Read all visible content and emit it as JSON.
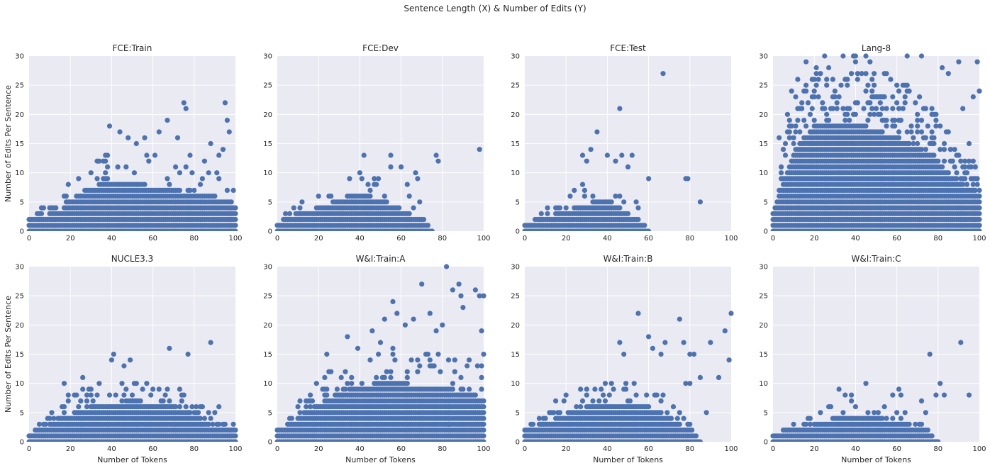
{
  "figure": {
    "title": "Sentence Length (X) & Number of Edits (Y)"
  },
  "style": {
    "background": "#eaeaf2",
    "grid": "#ffffff",
    "marker": "#4c72b0"
  },
  "chart_data": [
    {
      "type": "scatter",
      "title": "FCE:Train",
      "xlabel": "",
      "ylabel": "Number of Edits Per Sentence",
      "xlim": [
        0,
        100
      ],
      "ylim": [
        0,
        30
      ],
      "xticks": [
        "0",
        "20",
        "40",
        "60",
        "80",
        "100"
      ],
      "yticks": [
        "0",
        "5",
        "10",
        "15",
        "20",
        "25",
        "30"
      ],
      "grid": true,
      "profile": [
        [
          0,
          2
        ],
        [
          5,
          4
        ],
        [
          10,
          5
        ],
        [
          15,
          6
        ],
        [
          20,
          9
        ],
        [
          25,
          11
        ],
        [
          30,
          13
        ],
        [
          40,
          14
        ],
        [
          50,
          14
        ],
        [
          60,
          13
        ],
        [
          70,
          12
        ],
        [
          80,
          11
        ],
        [
          90,
          10
        ],
        [
          100,
          8
        ]
      ],
      "density": 210,
      "seed": 11,
      "outliers": [
        [
          39,
          18
        ],
        [
          44,
          17
        ],
        [
          48,
          16
        ],
        [
          52,
          15
        ],
        [
          56,
          16
        ],
        [
          63,
          17
        ],
        [
          67,
          19
        ],
        [
          72,
          16
        ],
        [
          75,
          22
        ],
        [
          76,
          21
        ],
        [
          78,
          13
        ],
        [
          85,
          12
        ],
        [
          88,
          15
        ],
        [
          92,
          13
        ],
        [
          94,
          14
        ],
        [
          95,
          22
        ],
        [
          96,
          19
        ],
        [
          97,
          17
        ],
        [
          99,
          7
        ]
      ]
    },
    {
      "type": "scatter",
      "title": "FCE:Dev",
      "xlabel": "",
      "ylabel": "",
      "xlim": [
        0,
        100
      ],
      "ylim": [
        0,
        30
      ],
      "xticks": [
        "0",
        "20",
        "40",
        "60",
        "80",
        "100"
      ],
      "yticks": [
        "0",
        "5",
        "10",
        "15",
        "20",
        "25",
        "30"
      ],
      "grid": true,
      "profile": [
        [
          0,
          1
        ],
        [
          5,
          3
        ],
        [
          10,
          5
        ],
        [
          15,
          6
        ],
        [
          20,
          7
        ],
        [
          25,
          8
        ],
        [
          30,
          9
        ],
        [
          38,
          11
        ],
        [
          45,
          10
        ],
        [
          55,
          8
        ],
        [
          62,
          6
        ],
        [
          70,
          3
        ],
        [
          75,
          0
        ]
      ],
      "density": 110,
      "seed": 23,
      "outliers": [
        [
          42,
          13
        ],
        [
          55,
          13
        ],
        [
          55,
          11
        ],
        [
          60,
          11
        ],
        [
          63,
          8
        ],
        [
          64,
          6
        ],
        [
          67,
          10
        ],
        [
          68,
          9
        ],
        [
          69,
          5
        ],
        [
          77,
          13
        ],
        [
          78,
          12
        ],
        [
          98,
          14
        ]
      ]
    },
    {
      "type": "scatter",
      "title": "FCE:Test",
      "xlabel": "",
      "ylabel": "",
      "xlim": [
        0,
        100
      ],
      "ylim": [
        0,
        30
      ],
      "xticks": [
        "0",
        "20",
        "40",
        "60",
        "80",
        "100"
      ],
      "yticks": [
        "0",
        "5",
        "10",
        "15",
        "20",
        "25",
        "30"
      ],
      "grid": true,
      "profile": [
        [
          0,
          1
        ],
        [
          5,
          2
        ],
        [
          10,
          4
        ],
        [
          15,
          5
        ],
        [
          20,
          6
        ],
        [
          25,
          7
        ],
        [
          30,
          8
        ],
        [
          38,
          9
        ],
        [
          45,
          7
        ],
        [
          50,
          5
        ],
        [
          55,
          2
        ],
        [
          60,
          0
        ]
      ],
      "density": 85,
      "seed": 37,
      "outliers": [
        [
          35,
          17
        ],
        [
          40,
          13
        ],
        [
          44,
          12
        ],
        [
          46,
          21
        ],
        [
          47,
          13
        ],
        [
          50,
          11
        ],
        [
          52,
          13
        ],
        [
          54,
          5
        ],
        [
          55,
          4
        ],
        [
          60,
          9
        ],
        [
          67,
          27
        ],
        [
          78,
          9
        ],
        [
          79,
          9
        ],
        [
          85,
          5
        ],
        [
          28,
          13
        ],
        [
          30,
          12
        ],
        [
          32,
          14
        ]
      ]
    },
    {
      "type": "scatter",
      "title": "Lang-8",
      "xlabel": "",
      "ylabel": "",
      "xlim": [
        0,
        100
      ],
      "ylim": [
        0,
        30
      ],
      "xticks": [
        "0",
        "20",
        "40",
        "60",
        "80",
        "100"
      ],
      "yticks": [
        "0",
        "5",
        "10",
        "15",
        "20",
        "25",
        "30"
      ],
      "grid": true,
      "profile": [
        [
          0,
          3
        ],
        [
          3,
          10
        ],
        [
          6,
          16
        ],
        [
          10,
          22
        ],
        [
          15,
          27
        ],
        [
          20,
          30
        ],
        [
          30,
          30
        ],
        [
          45,
          30
        ],
        [
          60,
          27
        ],
        [
          70,
          24
        ],
        [
          80,
          20
        ],
        [
          90,
          14
        ],
        [
          100,
          11
        ]
      ],
      "density": 900,
      "seed": 53,
      "outliers": [
        [
          3,
          16
        ],
        [
          7,
          20
        ],
        [
          9,
          24
        ],
        [
          12,
          26
        ],
        [
          16,
          29
        ],
        [
          25,
          30
        ],
        [
          40,
          30
        ],
        [
          65,
          30
        ],
        [
          72,
          30
        ],
        [
          82,
          28
        ],
        [
          85,
          27
        ],
        [
          90,
          29
        ],
        [
          92,
          21
        ],
        [
          95,
          15
        ],
        [
          97,
          23
        ],
        [
          98,
          11
        ],
        [
          99,
          29
        ],
        [
          100,
          24
        ],
        [
          100,
          1
        ],
        [
          100,
          0
        ],
        [
          96,
          0
        ],
        [
          93,
          2
        ]
      ]
    },
    {
      "type": "scatter",
      "title": "NUCLE3.3",
      "xlabel": "Number of Tokens",
      "ylabel": "Number of Edits Per Sentence",
      "xlim": [
        0,
        100
      ],
      "ylim": [
        0,
        30
      ],
      "xticks": [
        "0",
        "20",
        "40",
        "60",
        "80",
        "100"
      ],
      "yticks": [
        "0",
        "5",
        "10",
        "15",
        "20",
        "25",
        "30"
      ],
      "grid": true,
      "profile": [
        [
          0,
          1
        ],
        [
          5,
          3
        ],
        [
          10,
          5
        ],
        [
          15,
          7
        ],
        [
          20,
          8
        ],
        [
          30,
          10
        ],
        [
          40,
          11
        ],
        [
          50,
          12
        ],
        [
          60,
          11
        ],
        [
          70,
          10
        ],
        [
          80,
          8
        ],
        [
          85,
          6
        ],
        [
          90,
          4
        ],
        [
          100,
          3
        ]
      ],
      "density": 260,
      "seed": 71,
      "outliers": [
        [
          17,
          10
        ],
        [
          26,
          11
        ],
        [
          40,
          14
        ],
        [
          41,
          15
        ],
        [
          46,
          13
        ],
        [
          49,
          14
        ],
        [
          68,
          16
        ],
        [
          77,
          15
        ],
        [
          88,
          17
        ],
        [
          92,
          6
        ],
        [
          90,
          5
        ],
        [
          95,
          3
        ],
        [
          100,
          0
        ]
      ]
    },
    {
      "type": "scatter",
      "title": "W&I:Train:A",
      "xlabel": "Number of Tokens",
      "ylabel": "",
      "xlim": [
        0,
        100
      ],
      "ylim": [
        0,
        30
      ],
      "xticks": [
        "0",
        "20",
        "40",
        "60",
        "80",
        "100"
      ],
      "yticks": [
        "0",
        "5",
        "10",
        "15",
        "20",
        "25",
        "30"
      ],
      "grid": true,
      "profile": [
        [
          0,
          2
        ],
        [
          5,
          4
        ],
        [
          10,
          7
        ],
        [
          15,
          9
        ],
        [
          20,
          11
        ],
        [
          30,
          14
        ],
        [
          40,
          16
        ],
        [
          50,
          17
        ],
        [
          60,
          17
        ],
        [
          70,
          16
        ],
        [
          80,
          16
        ],
        [
          90,
          14
        ],
        [
          100,
          13
        ]
      ],
      "density": 320,
      "seed": 89,
      "outliers": [
        [
          24,
          15
        ],
        [
          34,
          18
        ],
        [
          46,
          19
        ],
        [
          52,
          21
        ],
        [
          56,
          24
        ],
        [
          58,
          22
        ],
        [
          62,
          20
        ],
        [
          66,
          21
        ],
        [
          70,
          27
        ],
        [
          74,
          22
        ],
        [
          77,
          19
        ],
        [
          80,
          20
        ],
        [
          82,
          30
        ],
        [
          83,
          3
        ],
        [
          85,
          26
        ],
        [
          88,
          27
        ],
        [
          89,
          25
        ],
        [
          90,
          23
        ],
        [
          93,
          14
        ],
        [
          96,
          26
        ],
        [
          98,
          25
        ],
        [
          99,
          19
        ],
        [
          100,
          15
        ],
        [
          99,
          13
        ],
        [
          100,
          25
        ]
      ]
    },
    {
      "type": "scatter",
      "title": "W&I:Train:B",
      "xlabel": "Number of Tokens",
      "ylabel": "",
      "xlim": [
        0,
        100
      ],
      "ylim": [
        0,
        30
      ],
      "xticks": [
        "0",
        "20",
        "40",
        "60",
        "80",
        "100"
      ],
      "yticks": [
        "0",
        "5",
        "10",
        "15",
        "20",
        "25",
        "30"
      ],
      "grid": true,
      "profile": [
        [
          0,
          2
        ],
        [
          5,
          3
        ],
        [
          10,
          5
        ],
        [
          15,
          7
        ],
        [
          20,
          8
        ],
        [
          30,
          10
        ],
        [
          40,
          11
        ],
        [
          50,
          11
        ],
        [
          60,
          10
        ],
        [
          65,
          9
        ],
        [
          70,
          7
        ],
        [
          75,
          5
        ],
        [
          80,
          3
        ],
        [
          85,
          0
        ]
      ],
      "density": 230,
      "seed": 97,
      "outliers": [
        [
          46,
          17
        ],
        [
          48,
          15
        ],
        [
          55,
          22
        ],
        [
          60,
          18
        ],
        [
          62,
          16
        ],
        [
          66,
          15
        ],
        [
          68,
          17
        ],
        [
          75,
          21
        ],
        [
          77,
          17
        ],
        [
          80,
          15
        ],
        [
          82,
          15
        ],
        [
          85,
          11
        ],
        [
          88,
          5
        ],
        [
          90,
          17
        ],
        [
          94,
          11
        ],
        [
          97,
          19
        ],
        [
          99,
          14
        ],
        [
          100,
          22
        ],
        [
          78,
          10
        ],
        [
          80,
          10
        ]
      ]
    },
    {
      "type": "scatter",
      "title": "W&I:Train:C",
      "xlabel": "Number of Tokens",
      "ylabel": "",
      "xlim": [
        0,
        100
      ],
      "ylim": [
        0,
        30
      ],
      "xticks": [
        "0",
        "20",
        "40",
        "60",
        "80",
        "100"
      ],
      "yticks": [
        "0",
        "5",
        "10",
        "15",
        "20",
        "25",
        "30"
      ],
      "grid": true,
      "profile": [
        [
          0,
          1
        ],
        [
          5,
          2
        ],
        [
          10,
          3
        ],
        [
          15,
          4
        ],
        [
          20,
          5
        ],
        [
          25,
          6
        ],
        [
          30,
          7
        ],
        [
          40,
          7
        ],
        [
          50,
          7
        ],
        [
          60,
          6
        ],
        [
          65,
          5
        ],
        [
          70,
          4
        ],
        [
          75,
          2
        ],
        [
          80,
          0
        ]
      ],
      "density": 170,
      "seed": 113,
      "outliers": [
        [
          32,
          9
        ],
        [
          35,
          8
        ],
        [
          38,
          8
        ],
        [
          45,
          10
        ],
        [
          58,
          8
        ],
        [
          61,
          9
        ],
        [
          62,
          8
        ],
        [
          72,
          7
        ],
        [
          74,
          5
        ],
        [
          76,
          15
        ],
        [
          79,
          8
        ],
        [
          81,
          10
        ],
        [
          83,
          8
        ],
        [
          91,
          17
        ],
        [
          95,
          8
        ]
      ]
    }
  ]
}
